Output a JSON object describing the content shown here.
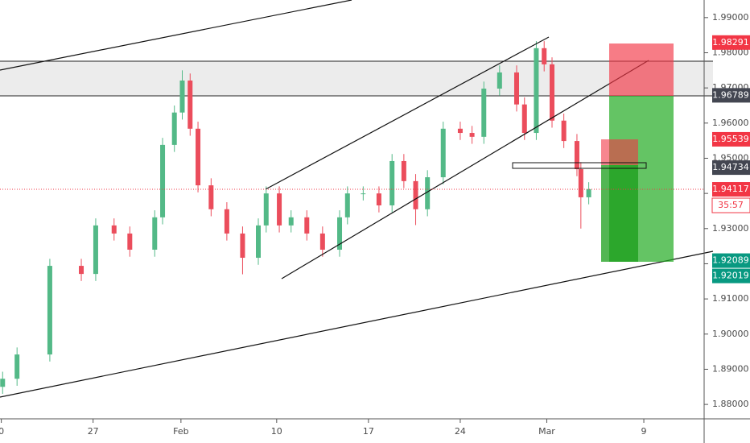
{
  "chart_data": {
    "type": "candlestick",
    "x": [
      0.1,
      1.2,
      3.7,
      6.1,
      7.2,
      8.6,
      9.8,
      11.7,
      12.3,
      13.2,
      13.8,
      14.4,
      15,
      16,
      17.2,
      18.4,
      19.6,
      20.2,
      21.2,
      22.1,
      23.3,
      24.5,
      25.8,
      26.4,
      27.6,
      28.8,
      29.8,
      30.7,
      31.6,
      32.5,
      33.7,
      35,
      35.9,
      36.8,
      38,
      39.3,
      39.9,
      40.8,
      41.4,
      42,
      42.9,
      43.9,
      44.2,
      44.8
    ],
    "open": [
      1.885,
      1.8873,
      1.8942,
      1.9194,
      1.9171,
      1.9309,
      1.9286,
      1.924,
      1.9332,
      1.9538,
      1.963,
      1.9721,
      1.9584,
      1.9423,
      1.9355,
      1.9286,
      1.9217,
      1.9309,
      1.94,
      1.9309,
      1.9332,
      1.9286,
      1.924,
      1.9332,
      1.94,
      1.94,
      1.9366,
      1.9492,
      1.9435,
      1.9355,
      1.9446,
      1.9584,
      1.9572,
      1.9561,
      1.9698,
      1.9744,
      1.9653,
      1.9572,
      1.9813,
      1.9767,
      1.9607,
      1.9549,
      1.9469,
      1.9389
    ],
    "high": [
      1.8893,
      1.8962,
      1.9214,
      1.9214,
      1.9329,
      1.9329,
      1.9306,
      1.9352,
      1.9558,
      1.965,
      1.975,
      1.9741,
      1.9604,
      1.9443,
      1.9375,
      1.9306,
      1.9329,
      1.942,
      1.942,
      1.9352,
      1.9352,
      1.9306,
      1.9352,
      1.942,
      1.942,
      1.942,
      1.9512,
      1.9512,
      1.9455,
      1.9466,
      1.9604,
      1.9604,
      1.9592,
      1.9718,
      1.9764,
      1.9764,
      1.9673,
      1.9833,
      1.9833,
      1.9787,
      1.9627,
      1.9569,
      1.9489,
      1.9432
    ],
    "low": [
      1.883,
      1.8853,
      1.8922,
      1.9151,
      1.9151,
      1.9266,
      1.922,
      1.922,
      1.9312,
      1.9518,
      1.961,
      1.9564,
      1.9403,
      1.9335,
      1.9266,
      1.917,
      1.9197,
      1.9289,
      1.9289,
      1.9289,
      1.9266,
      1.922,
      1.922,
      1.9312,
      1.938,
      1.9346,
      1.9346,
      1.9415,
      1.931,
      1.9335,
      1.9426,
      1.9552,
      1.9541,
      1.9541,
      1.9678,
      1.9633,
      1.9552,
      1.9552,
      1.9747,
      1.9587,
      1.9529,
      1.9449,
      1.93,
      1.9369
    ],
    "close": [
      1.8873,
      1.8942,
      1.9194,
      1.9171,
      1.9309,
      1.9286,
      1.924,
      1.9332,
      1.9538,
      1.963,
      1.9721,
      1.9584,
      1.9423,
      1.9355,
      1.9286,
      1.9217,
      1.9309,
      1.94,
      1.9309,
      1.9332,
      1.9286,
      1.924,
      1.9332,
      1.94,
      1.94,
      1.9366,
      1.9492,
      1.9435,
      1.9355,
      1.9446,
      1.9584,
      1.9572,
      1.9561,
      1.9698,
      1.9744,
      1.9653,
      1.9572,
      1.9813,
      1.9767,
      1.9607,
      1.9549,
      1.9469,
      1.9389,
      1.9412
    ],
    "up_color": "#53b987",
    "down_color": "#eb4d5c",
    "xlim": [
      -0.1,
      53.6
    ],
    "xticks": [
      {
        "value": 0,
        "label": "0"
      },
      {
        "value": 7,
        "label": "27"
      },
      {
        "value": 13.7,
        "label": "Feb"
      },
      {
        "value": 21,
        "label": "10"
      },
      {
        "value": 28,
        "label": "17"
      },
      {
        "value": 35,
        "label": "24"
      },
      {
        "value": 41.6,
        "label": "Mar"
      },
      {
        "value": 49,
        "label": "9"
      }
    ],
    "ylim": [
      1.8759,
      1.995
    ],
    "yticks": [
      {
        "value": 1.88,
        "label": "1.88000"
      },
      {
        "value": 1.89,
        "label": "1.89000"
      },
      {
        "value": 1.9,
        "label": "1.90000"
      },
      {
        "value": 1.91,
        "label": "1.91000"
      },
      {
        "value": 1.92,
        "label": "1.92000"
      },
      {
        "value": 1.93,
        "label": "1.93000"
      },
      {
        "value": 1.94,
        "label": "1.94000"
      },
      {
        "value": 1.95,
        "label": "1.95000"
      },
      {
        "value": 1.96,
        "label": "1.96000"
      },
      {
        "value": 1.97,
        "label": "1.97000"
      },
      {
        "value": 1.98,
        "label": "1.98000"
      },
      {
        "value": 1.99,
        "label": "1.99000"
      }
    ],
    "grid": false,
    "price_labels": [
      {
        "value": 1.98291,
        "color": "#f23645"
      },
      {
        "value": 1.96789,
        "color": "#434651"
      },
      {
        "value": 1.95539,
        "color": "#f23645"
      },
      {
        "value": 1.94734,
        "color": "#434651"
      },
      {
        "value": 1.94117,
        "color": "#f23645"
      },
      {
        "value": 1.92089,
        "color": "#089981"
      },
      {
        "value": 1.92019,
        "color": "#089981"
      }
    ],
    "countdown": "35:57"
  }
}
